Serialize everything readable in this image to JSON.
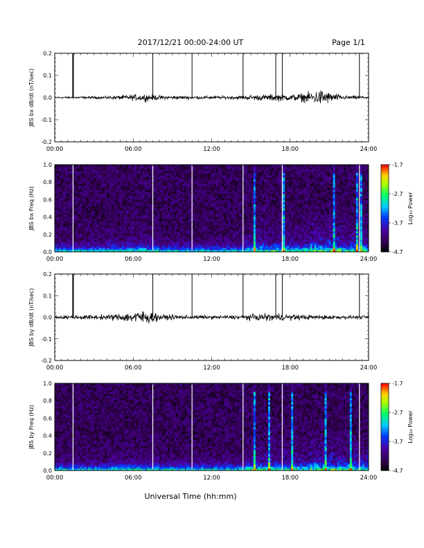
{
  "header": {
    "title": "2017/12/21   00:00-24:00 UT",
    "page": "Page 1/1"
  },
  "footer": {
    "xlabel": "Universal Time (hh:mm)"
  },
  "chart_data": [
    {
      "type": "line",
      "ylabel": "JBS bx dB/dt (nT/sec)",
      "xlabel": "",
      "xticks": [
        "00:00",
        "06:00",
        "12:00",
        "18:00",
        "24:00"
      ],
      "xlim_hours": [
        0,
        24
      ],
      "ylim": [
        -0.2,
        0.2
      ],
      "yticks": [
        "0.2",
        "0.1",
        "0.0",
        "-0.1",
        "-0.2"
      ],
      "spike_times_hours": [
        1.4,
        7.5,
        10.5,
        14.4,
        16.9,
        17.4,
        23.3
      ],
      "series": [
        {
          "x": [
            0,
            2,
            4,
            5,
            6,
            7,
            8,
            10,
            12,
            14,
            15,
            16,
            17,
            18,
            19,
            20,
            20.5,
            21,
            22,
            23,
            24
          ],
          "amplitude": [
            0.006,
            0.008,
            0.01,
            0.015,
            0.02,
            0.025,
            0.015,
            0.012,
            0.01,
            0.012,
            0.018,
            0.02,
            0.025,
            0.02,
            0.03,
            0.045,
            0.06,
            0.035,
            0.015,
            0.012,
            0.01
          ]
        }
      ]
    },
    {
      "type": "heatmap",
      "ylabel": "JBS bx Freq (Hz)",
      "xticks": [
        "00:00",
        "06:00",
        "12:00",
        "18:00",
        "24:00"
      ],
      "yticks": [
        "1.0",
        "0.8",
        "0.6",
        "0.4",
        "0.2",
        "0.0"
      ],
      "ylim": [
        0,
        1
      ],
      "colorbar": {
        "label": "Log₁₀ Power",
        "ticks": [
          "-1.7",
          "-2.7",
          "-3.7",
          "-4.7"
        ],
        "range": [
          -4.7,
          -1.7
        ]
      },
      "gap_times_hours": [
        1.4,
        7.5,
        10.5,
        14.4,
        17.4,
        23.3
      ]
    },
    {
      "type": "line",
      "ylabel": "JBS by dB/dt (nT/sec)",
      "xlabel": "",
      "xticks": [
        "00:00",
        "06:00",
        "12:00",
        "18:00",
        "24:00"
      ],
      "xlim_hours": [
        0,
        24
      ],
      "ylim": [
        -0.2,
        0.2
      ],
      "yticks": [
        "0.2",
        "0.1",
        "0.0",
        "-0.1",
        "-0.2"
      ],
      "spike_times_hours": [
        1.4,
        7.5,
        10.5,
        14.4,
        16.9,
        17.4,
        23.3
      ],
      "series": [
        {
          "x": [
            0,
            2,
            4,
            5,
            6,
            7,
            8,
            10,
            12,
            14,
            15,
            16,
            17,
            18,
            19,
            20,
            21,
            22,
            23,
            24
          ],
          "amplitude": [
            0.012,
            0.015,
            0.018,
            0.025,
            0.04,
            0.05,
            0.02,
            0.015,
            0.012,
            0.015,
            0.02,
            0.025,
            0.025,
            0.02,
            0.018,
            0.015,
            0.015,
            0.012,
            0.012,
            0.01
          ]
        }
      ]
    },
    {
      "type": "heatmap",
      "ylabel": "JBS by Freq (Hz)",
      "xticks": [
        "00:00",
        "06:00",
        "12:00",
        "18:00",
        "24:00"
      ],
      "yticks": [
        "1.0",
        "0.8",
        "0.6",
        "0.4",
        "0.2",
        "0.0"
      ],
      "ylim": [
        0,
        1
      ],
      "colorbar": {
        "label": "Log₁₀ Power",
        "ticks": [
          "-1.7",
          "-2.7",
          "-3.7",
          "-4.7"
        ],
        "range": [
          -4.7,
          -1.7
        ]
      },
      "gap_times_hours": [
        1.4,
        7.5,
        10.5,
        14.4,
        17.4,
        23.3
      ]
    }
  ]
}
